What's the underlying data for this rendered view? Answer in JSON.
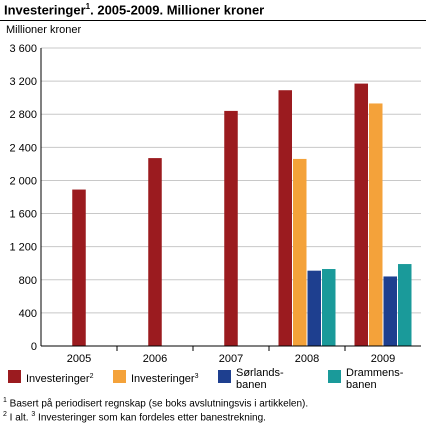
{
  "header": {
    "title_main": "Investeringer",
    "title_sup": "1",
    "title_rest": ". 2005-2009. Millioner kroner"
  },
  "chart_data": {
    "type": "bar",
    "ylabel": "Millioner kroner",
    "ylim": [
      0,
      3600
    ],
    "yticks": [
      0,
      400,
      800,
      1200,
      1600,
      2000,
      2400,
      2800,
      3200,
      3600
    ],
    "ytick_labels": [
      "0",
      "400",
      "800",
      "1 200",
      "1 600",
      "2 000",
      "2 400",
      "2 800",
      "3 200",
      "3 600"
    ],
    "categories": [
      "2005",
      "2006",
      "2007",
      "2008",
      "2009"
    ],
    "grid": true,
    "legend_position": "bottom",
    "series": [
      {
        "name": "Investeringer",
        "name_sup": "2",
        "color": "#9b1b1f",
        "values": [
          1890,
          2270,
          2840,
          3090,
          3170
        ]
      },
      {
        "name": "Investeringer",
        "name_sup": "3",
        "color": "#f4a23a",
        "values": [
          null,
          null,
          null,
          2260,
          2930
        ]
      },
      {
        "name": "Sørlands-banen",
        "name_lines": [
          "Sørlands-",
          "banen"
        ],
        "name_sup": "",
        "color": "#1e3f8f",
        "values": [
          null,
          null,
          null,
          910,
          840
        ]
      },
      {
        "name": "Drammens-banen",
        "name_lines": [
          "Drammens-",
          "banen"
        ],
        "name_sup": "",
        "color": "#1a9a9a",
        "values": [
          null,
          null,
          null,
          930,
          990
        ]
      }
    ]
  },
  "footnotes": {
    "note1_sup": "1",
    "note1_text": " Basert på periodisert regnskap (se boks avslutningsvis i artikkelen).",
    "note2_sup": "2",
    "note2_text": " I alt. ",
    "note3_sup": "3",
    "note3_text": " Investeringer som kan fordeles etter banestrekning."
  }
}
